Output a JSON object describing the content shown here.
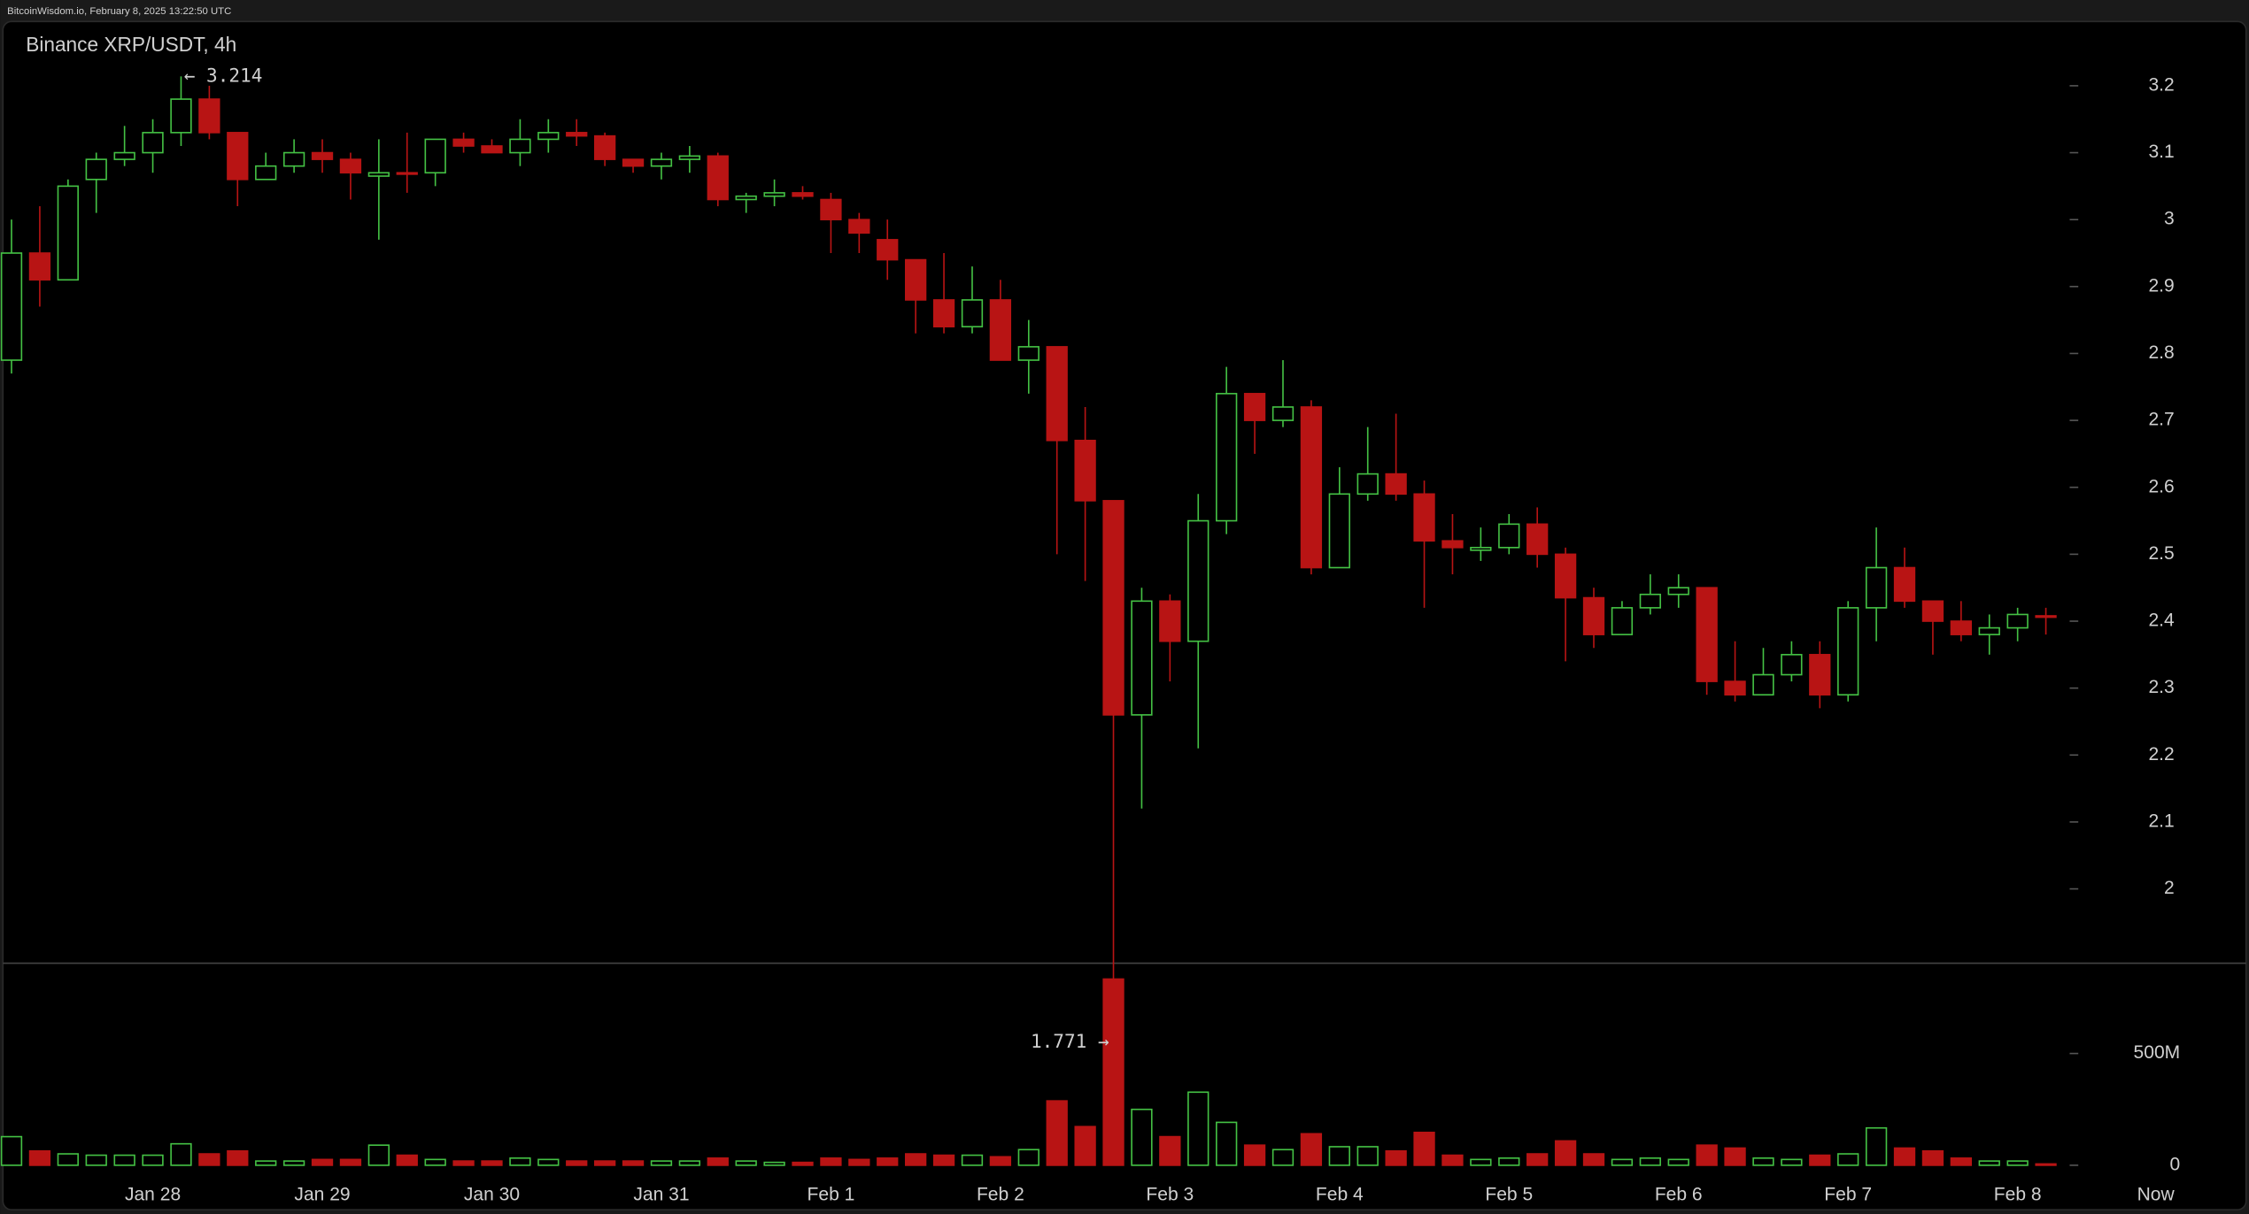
{
  "header": {
    "text": "BitcoinWisdom.io, February 8, 2025 13:22:50 UTC"
  },
  "chart_data": {
    "type": "candlestick",
    "title": "Binance XRP/USDT, 4h",
    "categories": [
      null,
      null,
      null,
      null,
      null,
      "Jan 28",
      null,
      null,
      null,
      null,
      null,
      "Jan 29",
      null,
      null,
      null,
      null,
      null,
      "Jan 30",
      null,
      null,
      null,
      null,
      null,
      "Jan 31",
      null,
      null,
      null,
      null,
      null,
      "Feb 1",
      null,
      null,
      null,
      null,
      null,
      "Feb 2",
      null,
      null,
      null,
      null,
      null,
      "Feb 3",
      null,
      null,
      null,
      null,
      null,
      "Feb 4",
      null,
      null,
      null,
      null,
      null,
      "Feb 5",
      null,
      null,
      null,
      null,
      null,
      "Feb 6",
      null,
      null,
      null,
      null,
      null,
      "Feb 7",
      null,
      null,
      null,
      null,
      null,
      "Feb 8",
      null
    ],
    "now_label": "Now",
    "open": [
      2.79,
      2.95,
      2.91,
      3.06,
      3.09,
      3.1,
      3.13,
      3.18,
      3.13,
      3.06,
      3.08,
      3.1,
      3.09,
      3.065,
      3.07,
      3.07,
      3.12,
      3.11,
      3.1,
      3.12,
      3.13,
      3.125,
      3.09,
      3.08,
      3.09,
      3.095,
      3.03,
      3.035,
      3.04,
      3.03,
      3.0,
      2.97,
      2.94,
      2.88,
      2.84,
      2.88,
      2.79,
      2.81,
      2.67,
      2.58,
      2.26,
      2.43,
      2.37,
      2.55,
      2.74,
      2.7,
      2.72,
      2.48,
      2.59,
      2.62,
      2.59,
      2.52,
      2.506,
      2.51,
      2.545,
      2.5,
      2.435,
      2.38,
      2.42,
      2.44,
      2.45,
      2.31,
      2.29,
      2.32,
      2.35,
      2.29,
      2.42,
      2.48,
      2.43,
      2.4,
      2.38,
      2.39,
      2.408
    ],
    "high": [
      3.0,
      3.02,
      3.06,
      3.1,
      3.14,
      3.15,
      3.214,
      3.2,
      3.13,
      3.1,
      3.12,
      3.12,
      3.1,
      3.12,
      3.13,
      3.12,
      3.13,
      3.12,
      3.15,
      3.15,
      3.15,
      3.13,
      3.09,
      3.1,
      3.11,
      3.1,
      3.04,
      3.06,
      3.05,
      3.04,
      3.01,
      3.0,
      2.94,
      2.95,
      2.93,
      2.91,
      2.85,
      2.81,
      2.72,
      2.58,
      2.45,
      2.44,
      2.59,
      2.78,
      2.74,
      2.79,
      2.73,
      2.63,
      2.69,
      2.71,
      2.61,
      2.56,
      2.54,
      2.56,
      2.57,
      2.51,
      2.45,
      2.43,
      2.47,
      2.47,
      2.45,
      2.37,
      2.36,
      2.37,
      2.37,
      2.43,
      2.54,
      2.51,
      2.43,
      2.43,
      2.41,
      2.42,
      2.42
    ],
    "low": [
      2.77,
      2.87,
      2.91,
      3.01,
      3.08,
      3.07,
      3.11,
      3.12,
      3.02,
      3.06,
      3.07,
      3.07,
      3.03,
      2.97,
      3.04,
      3.05,
      3.1,
      3.1,
      3.08,
      3.1,
      3.11,
      3.08,
      3.07,
      3.06,
      3.07,
      3.02,
      3.01,
      3.02,
      3.03,
      2.95,
      2.95,
      2.91,
      2.83,
      2.83,
      2.83,
      2.79,
      2.74,
      2.5,
      2.46,
      1.771,
      2.12,
      2.31,
      2.21,
      2.53,
      2.65,
      2.69,
      2.47,
      2.48,
      2.58,
      2.58,
      2.42,
      2.47,
      2.49,
      2.5,
      2.48,
      2.34,
      2.36,
      2.38,
      2.41,
      2.42,
      2.29,
      2.28,
      2.29,
      2.31,
      2.27,
      2.28,
      2.37,
      2.42,
      2.35,
      2.37,
      2.35,
      2.37,
      2.38
    ],
    "close": [
      2.95,
      2.91,
      3.05,
      3.09,
      3.1,
      3.13,
      3.18,
      3.13,
      3.06,
      3.08,
      3.1,
      3.09,
      3.07,
      3.07,
      3.068,
      3.12,
      3.11,
      3.1,
      3.12,
      3.13,
      3.125,
      3.09,
      3.08,
      3.09,
      3.095,
      3.03,
      3.035,
      3.04,
      3.035,
      3.0,
      2.98,
      2.94,
      2.88,
      2.84,
      2.88,
      2.79,
      2.81,
      2.67,
      2.58,
      2.26,
      2.43,
      2.37,
      2.55,
      2.74,
      2.7,
      2.72,
      2.48,
      2.59,
      2.62,
      2.59,
      2.52,
      2.51,
      2.51,
      2.545,
      2.5,
      2.435,
      2.38,
      2.42,
      2.44,
      2.45,
      2.31,
      2.29,
      2.32,
      2.35,
      2.29,
      2.42,
      2.48,
      2.43,
      2.4,
      2.38,
      2.39,
      2.41,
      2.406
    ],
    "volume": [
      128000000,
      64000000,
      51000000,
      45000000,
      45000000,
      45000000,
      96000000,
      51000000,
      64000000,
      19000000,
      19000000,
      26000000,
      26000000,
      90000000,
      45000000,
      26000000,
      19000000,
      19000000,
      32000000,
      26000000,
      19000000,
      19000000,
      19000000,
      19000000,
      19000000,
      32000000,
      19000000,
      13000000,
      13000000,
      32000000,
      26000000,
      32000000,
      51000000,
      45000000,
      45000000,
      38000000,
      70000000,
      288000000,
      173000000,
      833000000,
      250000000,
      128000000,
      327000000,
      192000000,
      90000000,
      70000000,
      141000000,
      83000000,
      83000000,
      64000000,
      147000000,
      45000000,
      26000000,
      32000000,
      51000000,
      109000000,
      51000000,
      26000000,
      32000000,
      26000000,
      90000000,
      77000000,
      32000000,
      26000000,
      45000000,
      51000000,
      167000000,
      77000000,
      64000000,
      32000000,
      19000000,
      19000000,
      6000000
    ],
    "up_color": "#44c144",
    "down_color": "#b81414",
    "ylim": [
      1.889,
      3.296
    ],
    "yticks": [
      2,
      2.1,
      2.2,
      2.3,
      2.4,
      2.5,
      2.6,
      2.7,
      2.8,
      2.9,
      3,
      3.1,
      3.2
    ],
    "volume_ylim": [
      0,
      904000000
    ],
    "volume_ticks": [
      0,
      {
        "value": 500000000,
        "label": "500M"
      }
    ],
    "annotations": {
      "high": "← 3.214",
      "low": "1.771 →"
    },
    "grid": false
  }
}
